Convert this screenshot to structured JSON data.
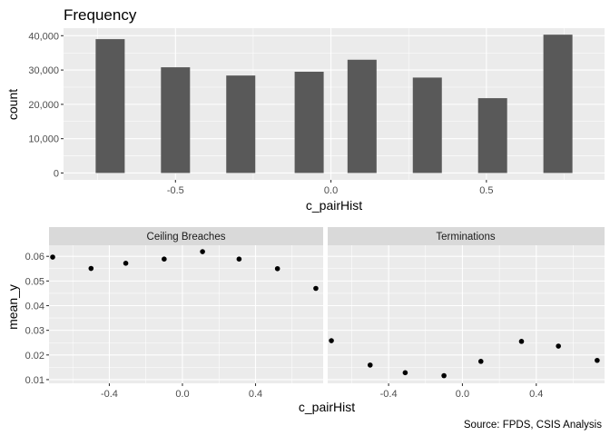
{
  "title": "Frequency",
  "caption": "Source: FPDS, CSIS Analysis",
  "colors": {
    "panel": "#ebebeb",
    "bar": "#595959",
    "strip": "#d9d9d9",
    "point": "#000000"
  },
  "chart_data": [
    {
      "type": "bar",
      "title": "Frequency",
      "xlabel": "c_pairHist",
      "ylabel": "count",
      "x": [
        -0.71,
        -0.5,
        -0.29,
        -0.07,
        0.1,
        0.31,
        0.52,
        0.73
      ],
      "values": [
        39000,
        30800,
        28400,
        29500,
        33000,
        27800,
        21800,
        40300
      ],
      "xlim": [
        -0.86,
        0.88
      ],
      "ylim": [
        -2000,
        42200
      ],
      "xticks": [
        -0.5,
        0.0,
        0.5
      ],
      "xtick_labels": [
        "-0.5",
        "0.0",
        "0.5"
      ],
      "yticks": [
        0,
        10000,
        20000,
        30000,
        40000
      ],
      "ytick_labels": [
        "0",
        "10,000",
        "20,000",
        "30,000",
        "40,000"
      ],
      "grid": true
    },
    {
      "type": "scatter",
      "xlabel": "c_pairHist",
      "ylabel": "mean_y",
      "xlim": [
        -0.73,
        0.77
      ],
      "ylim": [
        0.0085,
        0.0645
      ],
      "xticks": [
        -0.4,
        0.0,
        0.4
      ],
      "xtick_labels": [
        "-0.4",
        "0.0",
        "0.4"
      ],
      "yticks": [
        0.01,
        0.02,
        0.03,
        0.04,
        0.05,
        0.06
      ],
      "ytick_labels": [
        "0.01",
        "0.02",
        "0.03",
        "0.04",
        "0.05",
        "0.06"
      ],
      "grid": true,
      "facets": [
        {
          "name": "Ceiling Breaches",
          "x": [
            -0.71,
            -0.5,
            -0.31,
            -0.1,
            0.11,
            0.31,
            0.52,
            0.73
          ],
          "y": [
            0.0597,
            0.0551,
            0.0572,
            0.0589,
            0.0619,
            0.0589,
            0.055,
            0.047
          ]
        },
        {
          "name": "Terminations",
          "x": [
            -0.71,
            -0.5,
            -0.31,
            -0.1,
            0.1,
            0.32,
            0.52,
            0.73
          ],
          "y": [
            0.0258,
            0.0159,
            0.0128,
            0.0116,
            0.0174,
            0.0255,
            0.0236,
            0.0178
          ]
        }
      ]
    }
  ]
}
